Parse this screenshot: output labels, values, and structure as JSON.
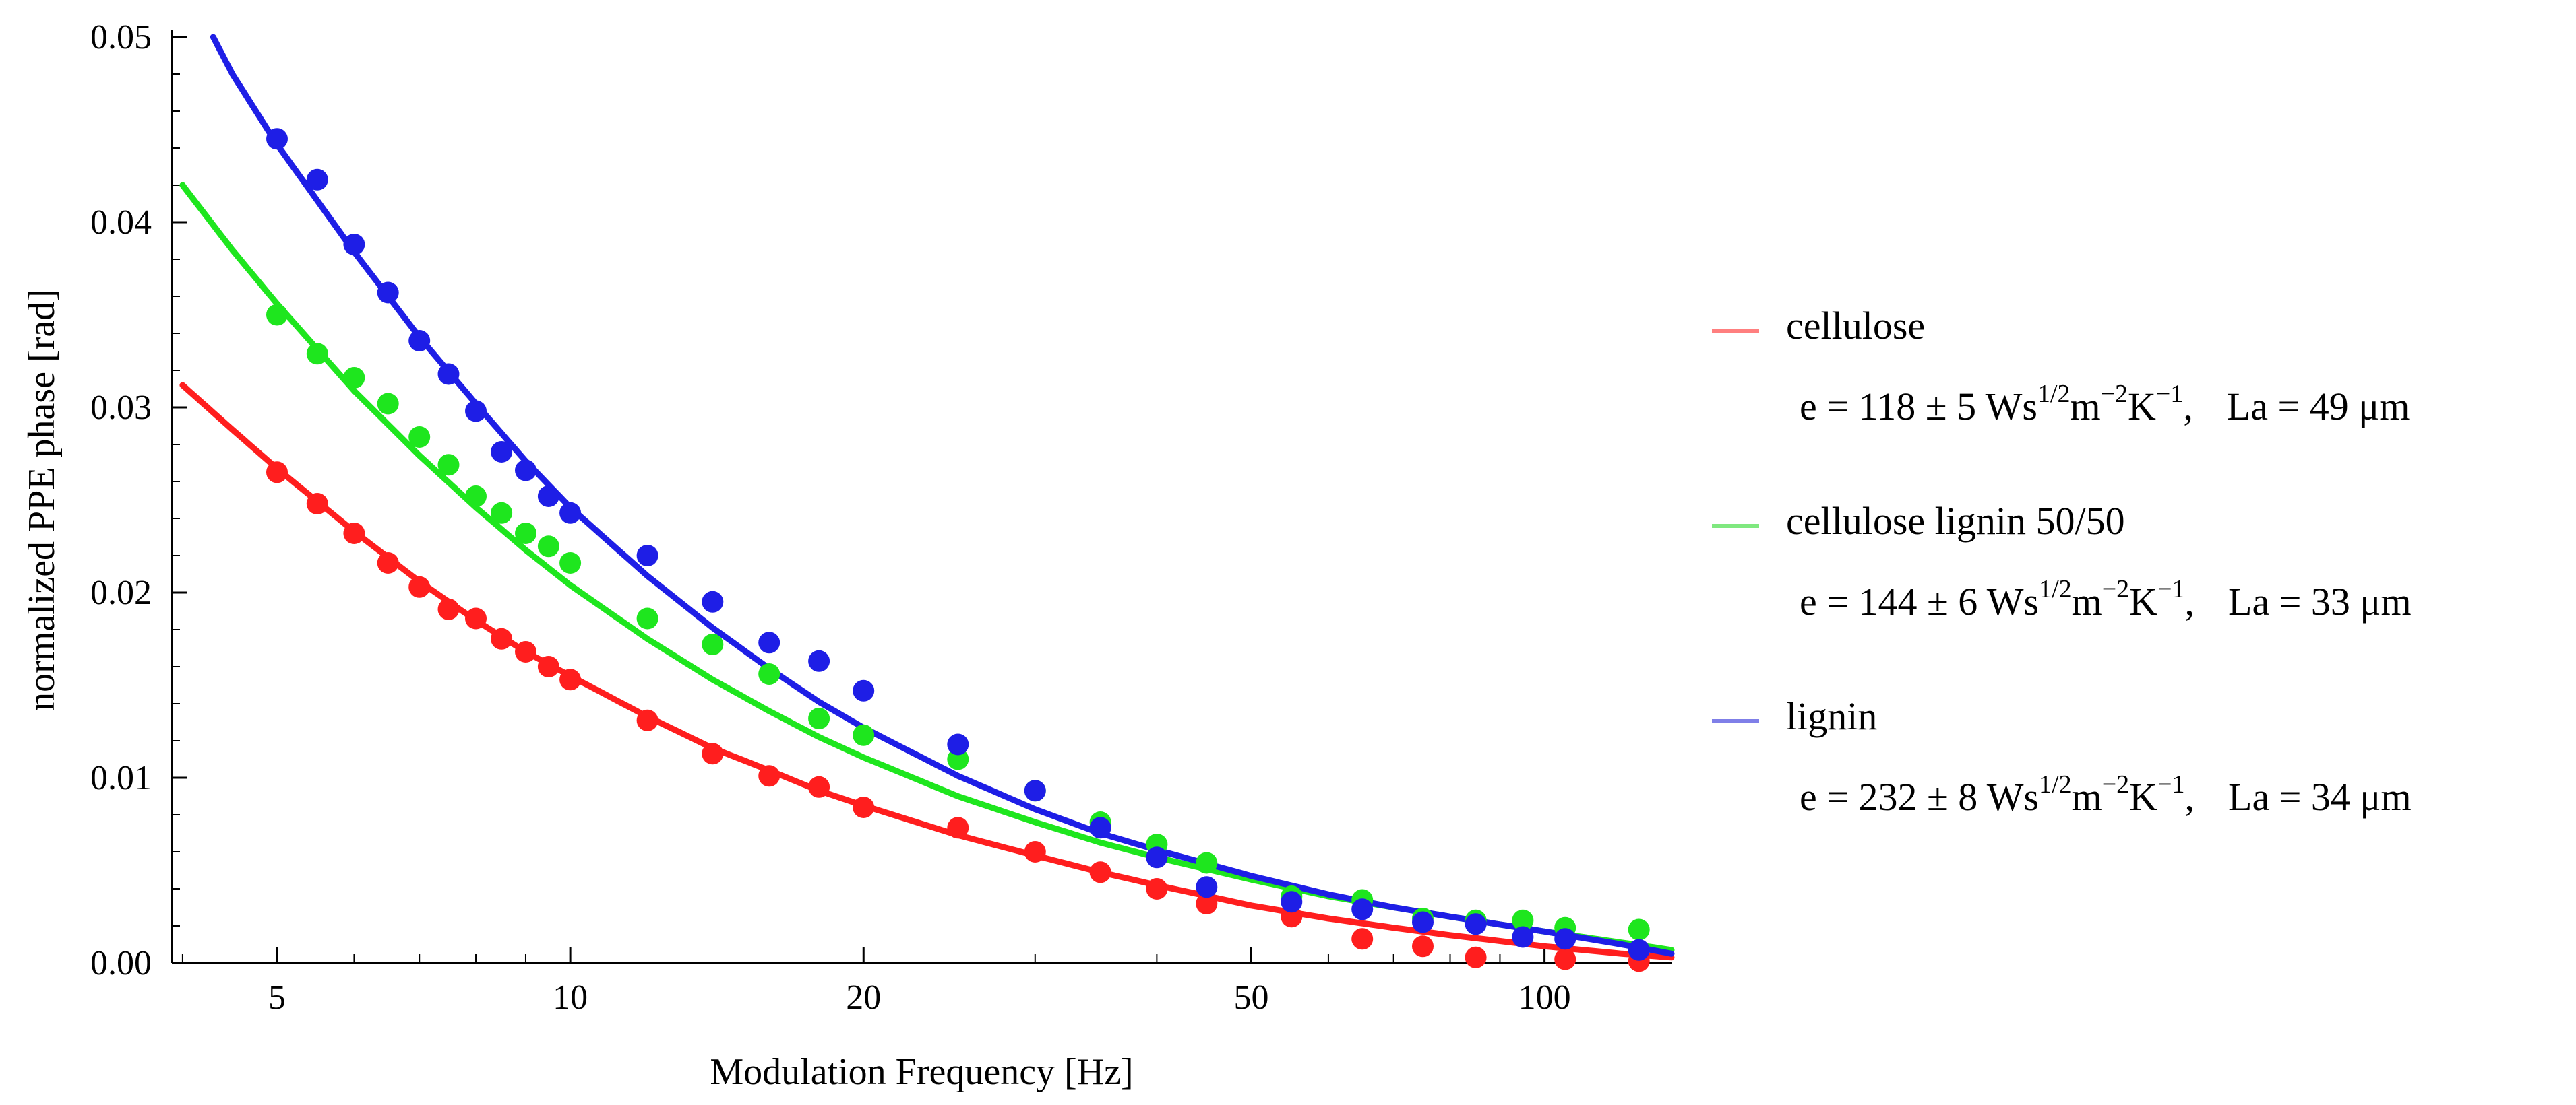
{
  "chart_data": {
    "type": "scatter",
    "title": "",
    "xlabel": "Modulation Frequency [Hz]",
    "ylabel": "normalized PPE phase  [rad]",
    "xscale": "log",
    "xlim": [
      3.9,
      135
    ],
    "ylim": [
      0,
      0.05
    ],
    "x_ticks": [
      5,
      10,
      20,
      50,
      100
    ],
    "x_tick_labels": [
      "5",
      "10",
      "20",
      "50",
      "100"
    ],
    "y_ticks": [
      0,
      0.01,
      0.02,
      0.03,
      0.04,
      0.05
    ],
    "y_tick_labels": [
      "0.00",
      "0.01",
      "0.02",
      "0.03",
      "0.04",
      "0.05"
    ],
    "legend_position": "right",
    "series": [
      {
        "name": "cellulose",
        "equation": {
          "base": "e = 118 ± 5 Ws",
          "exp1": "1/2",
          "mid": "m",
          "exp2": "−2",
          "mid2": "K",
          "exp3": "−1",
          "tail": ",",
          "la": "La = 49 μm"
        },
        "color": "#ff1e1e",
        "legend_color": "#ff7f7f",
        "points": [
          [
            5,
            0.0265
          ],
          [
            5.5,
            0.0248
          ],
          [
            6,
            0.0232
          ],
          [
            6.5,
            0.0216
          ],
          [
            7,
            0.0203
          ],
          [
            7.5,
            0.0191
          ],
          [
            8,
            0.0186
          ],
          [
            8.5,
            0.0175
          ],
          [
            9,
            0.0168
          ],
          [
            9.5,
            0.016
          ],
          [
            10,
            0.0153
          ],
          [
            12,
            0.0131
          ],
          [
            14,
            0.0113
          ],
          [
            16,
            0.0101
          ],
          [
            18,
            0.0095
          ],
          [
            20,
            0.0084
          ],
          [
            25,
            0.0073
          ],
          [
            30,
            0.006
          ],
          [
            35,
            0.0049
          ],
          [
            40,
            0.004
          ],
          [
            45,
            0.0032
          ],
          [
            55,
            0.0025
          ],
          [
            65,
            0.0013
          ],
          [
            75,
            0.0009
          ],
          [
            85,
            0.0003
          ],
          [
            105,
            0.0002
          ],
          [
            125,
            0.0001
          ]
        ],
        "curve": [
          [
            4,
            0.0312
          ],
          [
            4.5,
            0.0288
          ],
          [
            5,
            0.0267
          ],
          [
            6,
            0.0233
          ],
          [
            7,
            0.0206
          ],
          [
            8,
            0.0185
          ],
          [
            9,
            0.0168
          ],
          [
            10,
            0.0155
          ],
          [
            12,
            0.0133
          ],
          [
            14,
            0.0116
          ],
          [
            16,
            0.0104
          ],
          [
            18,
            0.0093
          ],
          [
            20,
            0.0085
          ],
          [
            25,
            0.0069
          ],
          [
            30,
            0.0058
          ],
          [
            35,
            0.0049
          ],
          [
            40,
            0.0042
          ],
          [
            50,
            0.0031
          ],
          [
            60,
            0.0024
          ],
          [
            70,
            0.0019
          ],
          [
            80,
            0.0015
          ],
          [
            100,
            0.0009
          ],
          [
            120,
            0.0005
          ],
          [
            135,
            0.0003
          ]
        ]
      },
      {
        "name": "cellulose lignin 50/50",
        "equation": {
          "base": "e = 144 ± 6 Ws",
          "exp1": "1/2",
          "mid": "m",
          "exp2": "−2",
          "mid2": "K",
          "exp3": "−1",
          "tail": ",",
          "la": "La = 33 μm"
        },
        "color": "#1ee61e",
        "legend_color": "#7fe87f",
        "points": [
          [
            5,
            0.035
          ],
          [
            5.5,
            0.0329
          ],
          [
            6,
            0.0316
          ],
          [
            6.5,
            0.0302
          ],
          [
            7,
            0.0284
          ],
          [
            7.5,
            0.0269
          ],
          [
            8,
            0.0252
          ],
          [
            8.5,
            0.0243
          ],
          [
            9,
            0.0232
          ],
          [
            9.5,
            0.0225
          ],
          [
            10,
            0.0216
          ],
          [
            12,
            0.0186
          ],
          [
            14,
            0.0172
          ],
          [
            16,
            0.0156
          ],
          [
            18,
            0.0132
          ],
          [
            20,
            0.0123
          ],
          [
            25,
            0.011
          ],
          [
            30,
            0.0093
          ],
          [
            35,
            0.0076
          ],
          [
            40,
            0.0064
          ],
          [
            45,
            0.0054
          ],
          [
            55,
            0.0036
          ],
          [
            65,
            0.0034
          ],
          [
            75,
            0.0024
          ],
          [
            85,
            0.0023
          ],
          [
            95,
            0.0023
          ],
          [
            105,
            0.0019
          ],
          [
            125,
            0.0018
          ]
        ],
        "curve": [
          [
            4,
            0.042
          ],
          [
            4.5,
            0.0385
          ],
          [
            5,
            0.0356
          ],
          [
            6,
            0.0309
          ],
          [
            7,
            0.0274
          ],
          [
            8,
            0.0246
          ],
          [
            9,
            0.0223
          ],
          [
            10,
            0.0204
          ],
          [
            12,
            0.0175
          ],
          [
            14,
            0.0153
          ],
          [
            16,
            0.0136
          ],
          [
            18,
            0.0122
          ],
          [
            20,
            0.0111
          ],
          [
            25,
            0.009
          ],
          [
            30,
            0.0076
          ],
          [
            35,
            0.0065
          ],
          [
            40,
            0.0057
          ],
          [
            50,
            0.0045
          ],
          [
            60,
            0.0036
          ],
          [
            70,
            0.003
          ],
          [
            80,
            0.0025
          ],
          [
            100,
            0.0017
          ],
          [
            120,
            0.0011
          ],
          [
            135,
            0.0007
          ]
        ]
      },
      {
        "name": "lignin",
        "equation": {
          "base": "e = 232 ± 8 Ws",
          "exp1": "1/2",
          "mid": "m",
          "exp2": "−2",
          "mid2": "K",
          "exp3": "−1",
          "tail": ",",
          "la": "La = 34 μm"
        },
        "color": "#1e1ee6",
        "legend_color": "#7f7fe8",
        "points": [
          [
            5,
            0.0445
          ],
          [
            5.5,
            0.0423
          ],
          [
            6,
            0.0388
          ],
          [
            6.5,
            0.0362
          ],
          [
            7,
            0.0336
          ],
          [
            7.5,
            0.0318
          ],
          [
            8,
            0.0298
          ],
          [
            8.5,
            0.0276
          ],
          [
            9,
            0.0266
          ],
          [
            9.5,
            0.0252
          ],
          [
            10,
            0.0243
          ],
          [
            12,
            0.022
          ],
          [
            14,
            0.0195
          ],
          [
            16,
            0.0173
          ],
          [
            18,
            0.0163
          ],
          [
            20,
            0.0147
          ],
          [
            25,
            0.0118
          ],
          [
            30,
            0.0093
          ],
          [
            35,
            0.0073
          ],
          [
            40,
            0.0057
          ],
          [
            45,
            0.0041
          ],
          [
            55,
            0.0033
          ],
          [
            65,
            0.0029
          ],
          [
            75,
            0.0022
          ],
          [
            85,
            0.0021
          ],
          [
            95,
            0.0014
          ],
          [
            105,
            0.0013
          ],
          [
            125,
            0.0007
          ]
        ],
        "curve": [
          [
            4.3,
            0.05
          ],
          [
            4.5,
            0.048
          ],
          [
            5,
            0.0442
          ],
          [
            6,
            0.0384
          ],
          [
            7,
            0.0338
          ],
          [
            8,
            0.0302
          ],
          [
            9,
            0.0271
          ],
          [
            10,
            0.0246
          ],
          [
            12,
            0.0209
          ],
          [
            14,
            0.0181
          ],
          [
            16,
            0.0159
          ],
          [
            18,
            0.0141
          ],
          [
            20,
            0.0127
          ],
          [
            25,
            0.0101
          ],
          [
            30,
            0.0083
          ],
          [
            35,
            0.007
          ],
          [
            40,
            0.0061
          ],
          [
            50,
            0.0047
          ],
          [
            60,
            0.0037
          ],
          [
            70,
            0.003
          ],
          [
            80,
            0.0025
          ],
          [
            100,
            0.0017
          ],
          [
            120,
            0.001
          ],
          [
            135,
            0.0005
          ]
        ]
      }
    ]
  }
}
